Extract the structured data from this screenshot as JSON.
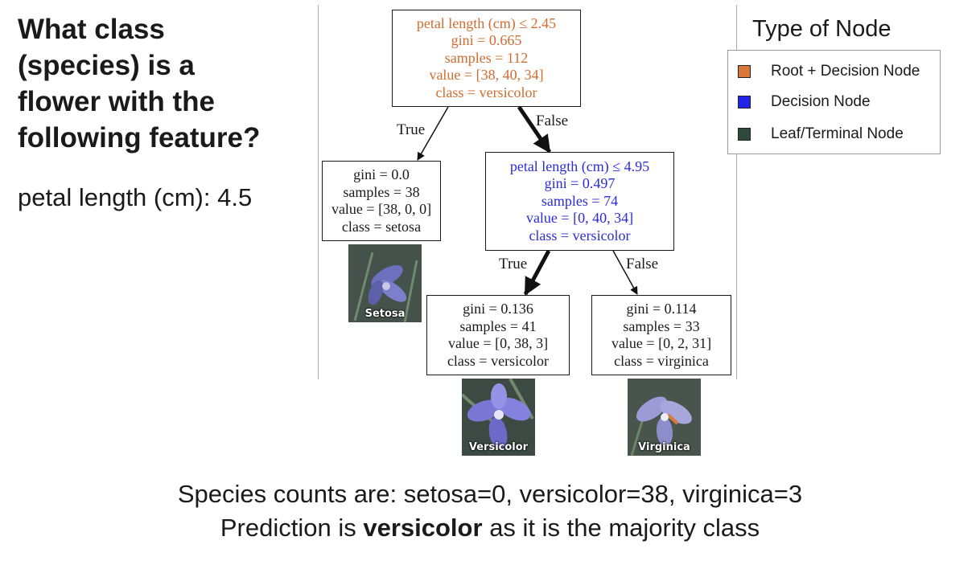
{
  "question": {
    "lines": [
      "What class",
      "(species) is a",
      "flower with the",
      "following feature?"
    ],
    "feature": "petal length (cm): 4.5"
  },
  "tree": {
    "root": {
      "lines": [
        "petal length (cm) ≤ 2.45",
        "gini = 0.665",
        "samples = 112",
        "value = [38, 40, 34]",
        "class = versicolor"
      ]
    },
    "setosa_leaf": {
      "lines": [
        "gini = 0.0",
        "samples = 38",
        "value = [38, 0, 0]",
        "class = setosa"
      ]
    },
    "decision": {
      "lines": [
        "petal length (cm) ≤ 4.95",
        "gini = 0.497",
        "samples = 74",
        "value = [0, 40, 34]",
        "class = versicolor"
      ]
    },
    "versicolor_leaf": {
      "lines": [
        "gini = 0.136",
        "samples = 41",
        "value = [0, 38, 3]",
        "class = versicolor"
      ]
    },
    "virginica_leaf": {
      "lines": [
        "gini = 0.114",
        "samples = 33",
        "value = [0, 2, 31]",
        "class = virginica"
      ]
    },
    "edges": {
      "root_left": "True",
      "root_right": "False",
      "decision_left": "True",
      "decision_right": "False"
    }
  },
  "images": {
    "setosa": "Setosa",
    "versicolor": "Versicolor",
    "virginica": "Virginica"
  },
  "legend": {
    "title": "Type of Node",
    "items": [
      {
        "label": "Root + Decision Node",
        "color": "#d9773a"
      },
      {
        "label": "Decision Node",
        "color": "#2323e8"
      },
      {
        "label": "Leaf/Terminal Node",
        "color": "#2f4a3a"
      }
    ]
  },
  "summary": {
    "line1": "Species counts are: setosa=0, versicolor=38, virginica=3",
    "line2_prefix": "Prediction is",
    "line2_bold": "versicolor",
    "line2_suffix": "as it is the majority class"
  },
  "colors": {
    "root_text": "#d06c2f",
    "decision_text": "#2b2bdb",
    "leaf_text": "#1a1a1a"
  }
}
